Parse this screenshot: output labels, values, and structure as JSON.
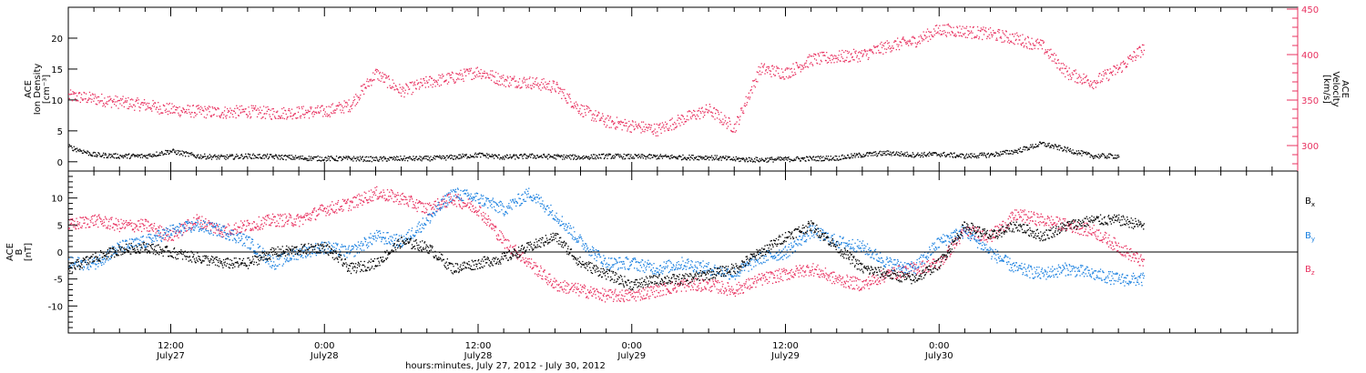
{
  "chart_data": [
    {
      "type": "scatter",
      "panel": "top",
      "left_axis": {
        "title_lines": [
          "ACE",
          "Ion Density",
          "[cm⁻³]"
        ],
        "ticks": [
          0,
          5,
          10,
          15,
          20
        ],
        "tick_labels": [
          "0",
          "5",
          "10",
          "15",
          "20"
        ],
        "range": [
          -1.5,
          25
        ]
      },
      "right_axis": {
        "title_lines": [
          "ACE",
          "Velocity",
          "[km/s]"
        ],
        "ticks": [
          300,
          350,
          400,
          450
        ],
        "tick_labels": [
          "300",
          "350",
          "400",
          "450"
        ],
        "range": [
          272,
          452
        ],
        "color": "#e8305f"
      },
      "series": [
        {
          "name": "Ion Density",
          "axis": "left",
          "color": "#000000",
          "x_hours": [
            0,
            2,
            4,
            6,
            8,
            10,
            12,
            14,
            16,
            18,
            20,
            22,
            24,
            26,
            28,
            30,
            32,
            34,
            36,
            38,
            40,
            42,
            44,
            46,
            48,
            50,
            52,
            54,
            56,
            58,
            60,
            62,
            64,
            66,
            68,
            70,
            72,
            74,
            76,
            78,
            80,
            82
          ],
          "y": [
            2.5,
            1.2,
            1.0,
            1.0,
            1.8,
            1.0,
            0.8,
            1.0,
            0.9,
            0.7,
            0.6,
            0.6,
            0.5,
            0.6,
            0.6,
            0.8,
            1.2,
            0.8,
            1.0,
            0.9,
            0.8,
            1.0,
            0.9,
            0.9,
            0.8,
            0.8,
            0.5,
            0.4,
            0.5,
            0.6,
            0.7,
            1.2,
            1.5,
            1.2,
            1.3,
            1.0,
            1.2,
            1.8,
            3.0,
            2.0,
            1.0,
            1.0
          ]
        },
        {
          "name": "Velocity",
          "axis": "right",
          "color": "#e8305f",
          "x_hours": [
            0,
            2,
            4,
            6,
            8,
            10,
            12,
            14,
            16,
            18,
            20,
            22,
            24,
            26,
            28,
            30,
            32,
            34,
            36,
            38,
            40,
            42,
            44,
            46,
            48,
            50,
            52,
            54,
            56,
            58,
            60,
            62,
            64,
            66,
            68,
            70,
            72,
            74,
            76,
            78,
            80,
            82,
            84
          ],
          "y": [
            355,
            352,
            348,
            345,
            340,
            338,
            337,
            338,
            336,
            337,
            338,
            345,
            380,
            360,
            370,
            375,
            382,
            372,
            370,
            365,
            340,
            327,
            322,
            318,
            330,
            340,
            320,
            385,
            380,
            395,
            398,
            400,
            410,
            415,
            428,
            426,
            423,
            418,
            410,
            380,
            370,
            385,
            408
          ]
        }
      ]
    },
    {
      "type": "scatter",
      "panel": "bottom",
      "left_axis": {
        "title_lines": [
          "ACE",
          "B",
          "[nT]"
        ],
        "ticks": [
          -10,
          -5,
          0,
          5,
          10
        ],
        "tick_labels": [
          "-10",
          "-5",
          "0",
          "5",
          "10"
        ],
        "range": [
          -15,
          15
        ]
      },
      "zero_line": true,
      "series": [
        {
          "name": "Bx",
          "label_main": "B",
          "label_sub": "x",
          "color": "#000000",
          "x_hours": [
            0,
            2,
            4,
            6,
            8,
            10,
            12,
            14,
            16,
            18,
            20,
            22,
            24,
            26,
            28,
            30,
            32,
            34,
            36,
            38,
            40,
            42,
            44,
            46,
            48,
            50,
            52,
            54,
            56,
            58,
            60,
            62,
            64,
            66,
            68,
            70,
            72,
            74,
            76,
            78,
            80,
            82,
            84
          ],
          "y": [
            -3,
            -1,
            0.5,
            1,
            0,
            -1,
            -2,
            -2,
            0,
            0.5,
            1,
            -3,
            -2,
            2,
            1,
            -3,
            -2,
            -1,
            1,
            3,
            -2,
            -4,
            -6,
            -5,
            -5,
            -4,
            -3,
            0,
            3,
            5,
            1,
            -3,
            -4,
            -5,
            -2,
            5,
            3,
            5,
            3,
            5,
            6,
            6,
            5
          ]
        },
        {
          "name": "By",
          "label_main": "B",
          "label_sub": "y",
          "color": "#1a80e0",
          "x_hours": [
            0,
            2,
            4,
            6,
            8,
            10,
            12,
            14,
            16,
            18,
            20,
            22,
            24,
            26,
            28,
            30,
            32,
            34,
            36,
            38,
            40,
            42,
            44,
            46,
            48,
            50,
            52,
            54,
            56,
            58,
            60,
            62,
            64,
            66,
            68,
            70,
            72,
            74,
            76,
            78,
            80,
            82,
            84
          ],
          "y": [
            -2,
            -2,
            1,
            2,
            4,
            5,
            4,
            2,
            -2,
            0,
            1,
            0,
            3,
            2,
            6,
            11,
            10,
            8,
            11,
            7,
            2,
            -2,
            -2,
            -3,
            -2,
            -3,
            -4,
            -1,
            0,
            4,
            2,
            1,
            -2,
            -3,
            2,
            4,
            0,
            -3,
            -4,
            -3,
            -4,
            -5,
            -5
          ]
        },
        {
          "name": "Bz",
          "label_main": "B",
          "label_sub": "z",
          "color": "#e8305f",
          "x_hours": [
            0,
            2,
            4,
            6,
            8,
            10,
            12,
            14,
            16,
            18,
            20,
            22,
            24,
            26,
            28,
            30,
            32,
            34,
            36,
            38,
            40,
            42,
            44,
            46,
            48,
            50,
            52,
            54,
            56,
            58,
            60,
            62,
            64,
            66,
            68,
            70,
            72,
            74,
            76,
            78,
            80,
            82,
            84
          ],
          "y": [
            5,
            6,
            5,
            5,
            3,
            6,
            4,
            5,
            6,
            6,
            8,
            9,
            11,
            10,
            8,
            10,
            8,
            2,
            -2,
            -6,
            -7,
            -8,
            -8,
            -7,
            -6,
            -6,
            -7,
            -5,
            -4,
            -3,
            -5,
            -6,
            -4,
            -3,
            -2,
            4,
            3,
            7,
            6,
            5,
            4,
            1,
            -2
          ]
        }
      ]
    }
  ],
  "x_axis": {
    "tick_dates": [
      {
        "time": "12:00",
        "date": "July27"
      },
      {
        "time": "0:00",
        "date": "July28"
      },
      {
        "time": "12:00",
        "date": "July28"
      },
      {
        "time": "0:00",
        "date": "July29"
      },
      {
        "time": "12:00",
        "date": "July29"
      },
      {
        "time": "0:00",
        "date": "July30"
      }
    ],
    "major_tick_hours": [
      8,
      20,
      32,
      44,
      56,
      68
    ],
    "minor_step_hours": 2,
    "range_hours": [
      0,
      96
    ],
    "title": "hours:minutes, July 27, 2012 - July 30, 2012"
  },
  "colors": {
    "black": "#000000",
    "red": "#e8305f",
    "blue": "#1a80e0",
    "frame": "#000000"
  }
}
